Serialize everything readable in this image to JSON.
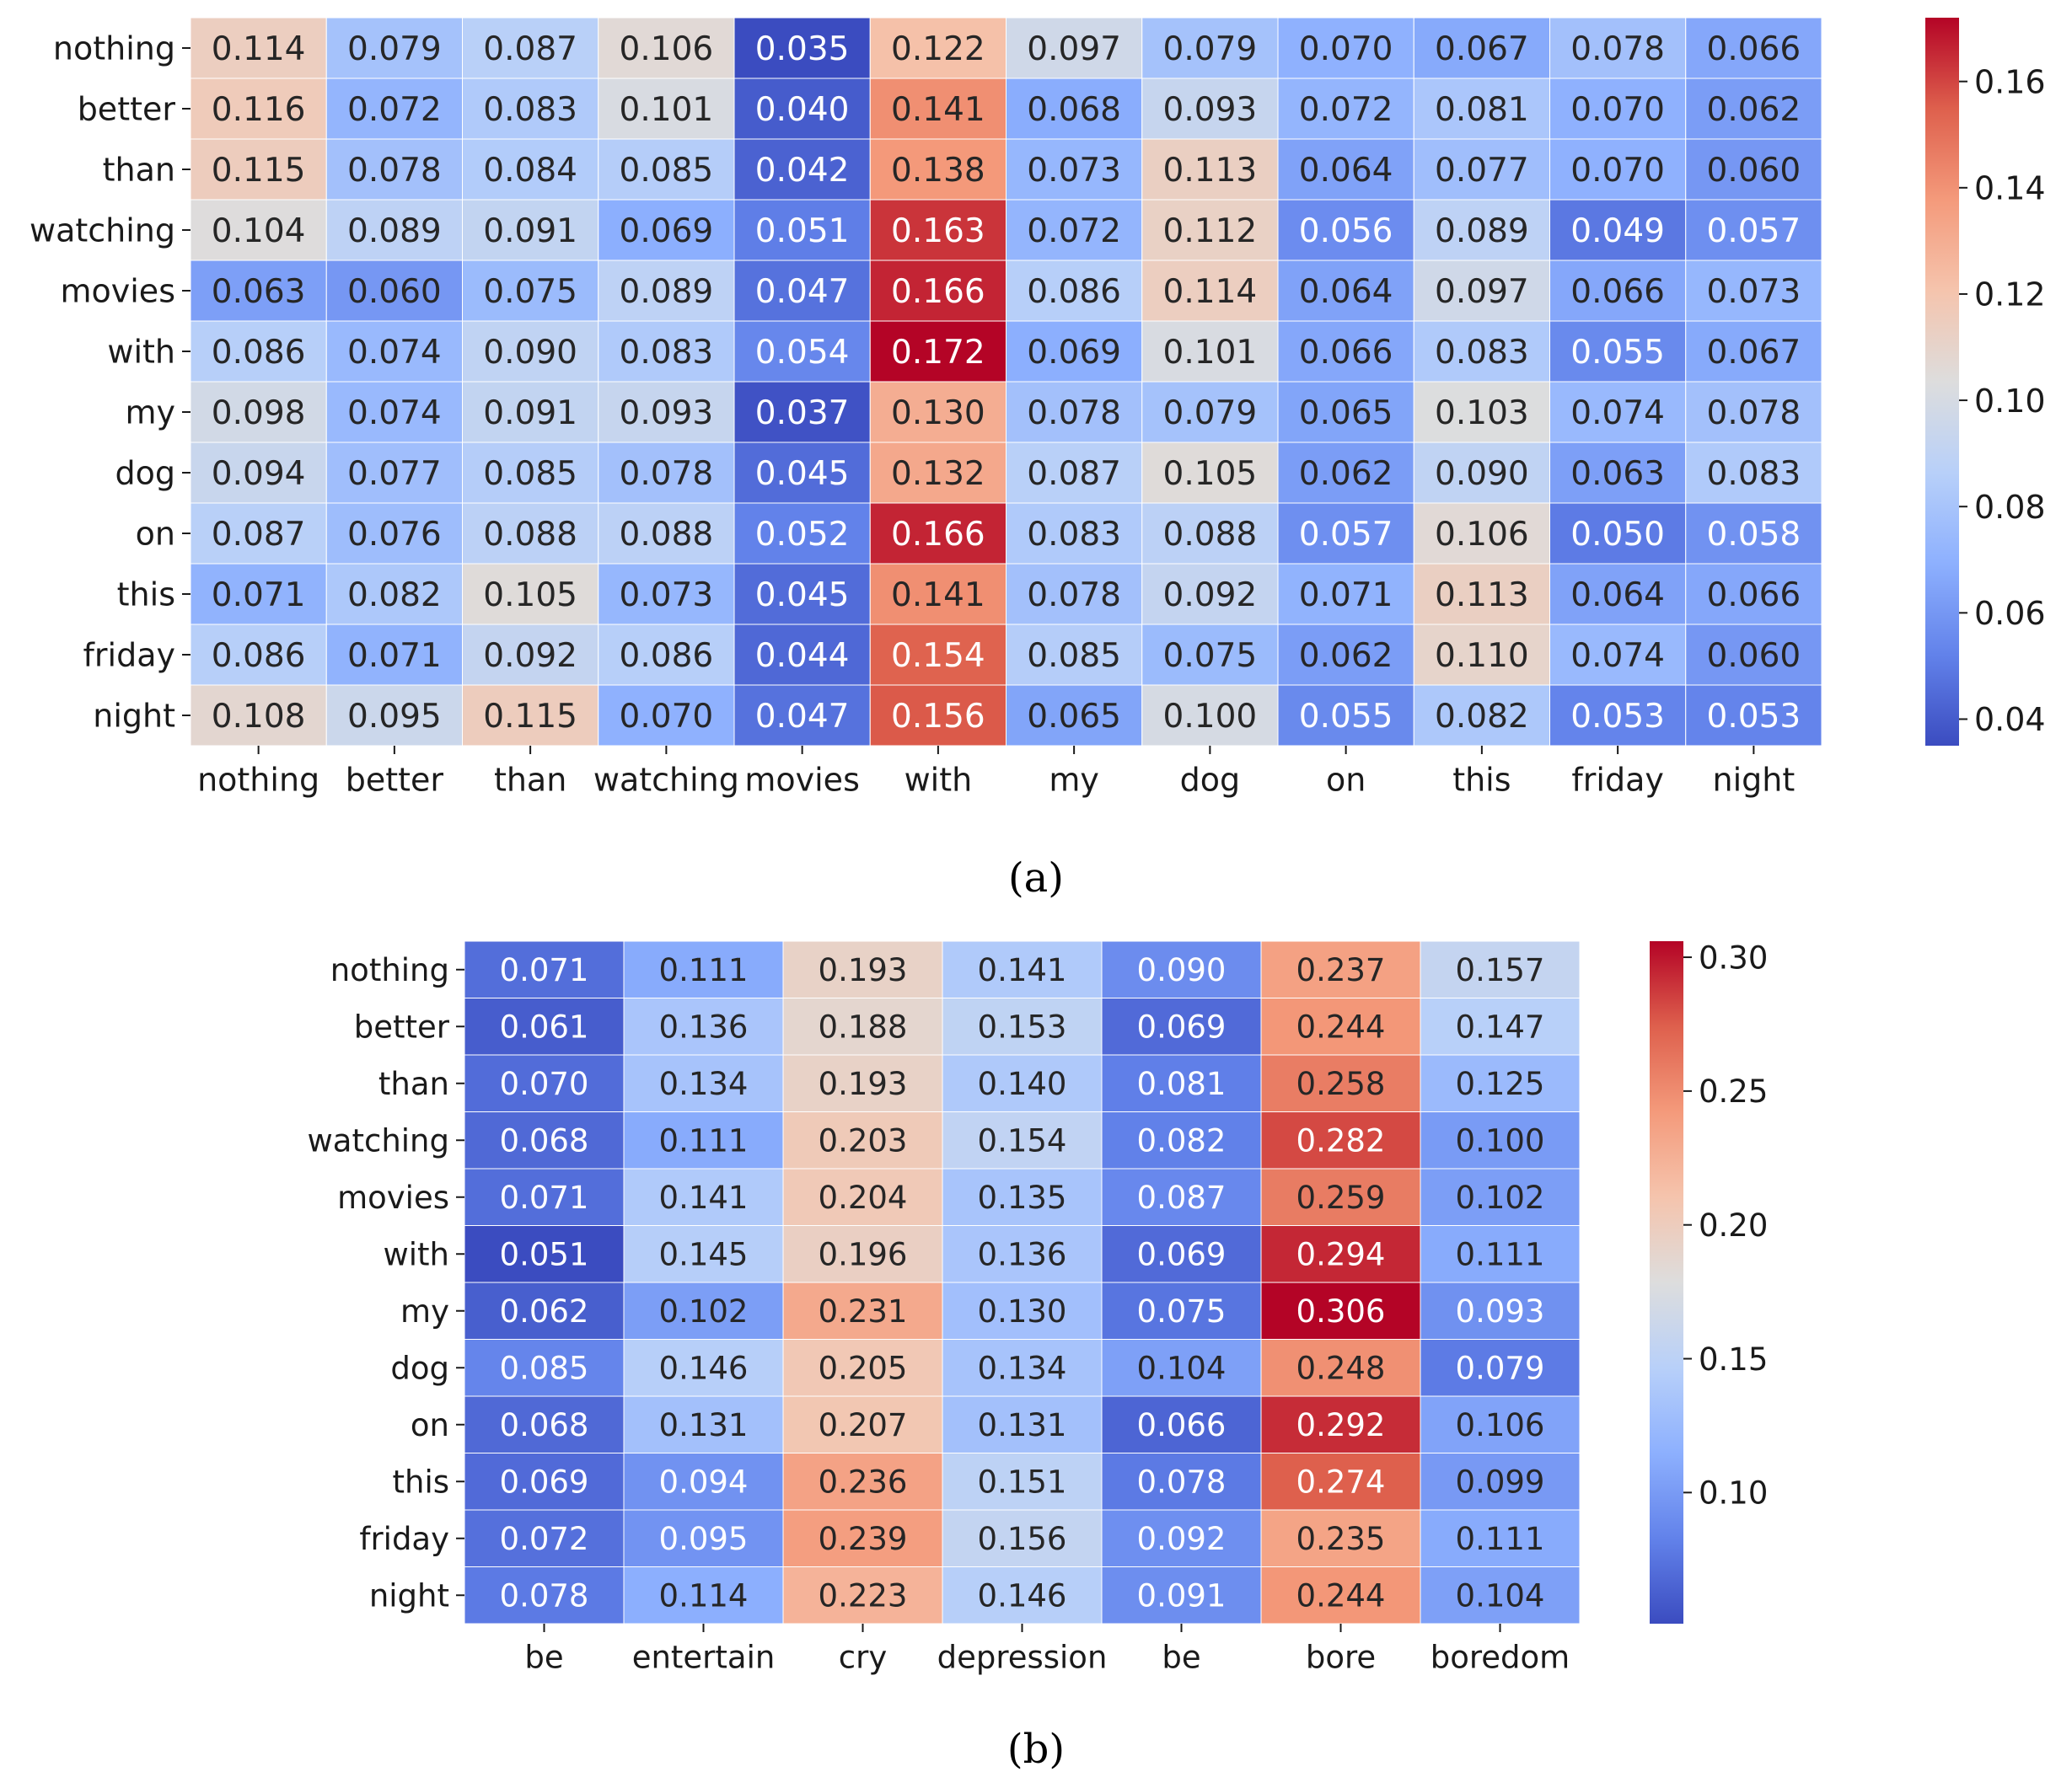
{
  "chart_data": [
    {
      "type": "heatmap",
      "caption": "(a)",
      "rows": [
        "nothing",
        "better",
        "than",
        "watching",
        "movies",
        "with",
        "my",
        "dog",
        "on",
        "this",
        "friday",
        "night"
      ],
      "cols": [
        "nothing",
        "better",
        "than",
        "watching",
        "movies",
        "with",
        "my",
        "dog",
        "on",
        "this",
        "friday",
        "night"
      ],
      "values": [
        [
          0.114,
          0.079,
          0.087,
          0.106,
          0.035,
          0.122,
          0.097,
          0.079,
          0.07,
          0.067,
          0.078,
          0.066
        ],
        [
          0.116,
          0.072,
          0.083,
          0.101,
          0.04,
          0.141,
          0.068,
          0.093,
          0.072,
          0.081,
          0.07,
          0.062
        ],
        [
          0.115,
          0.078,
          0.084,
          0.085,
          0.042,
          0.138,
          0.073,
          0.113,
          0.064,
          0.077,
          0.07,
          0.06
        ],
        [
          0.104,
          0.089,
          0.091,
          0.069,
          0.051,
          0.163,
          0.072,
          0.112,
          0.056,
          0.089,
          0.049,
          0.057
        ],
        [
          0.063,
          0.06,
          0.075,
          0.089,
          0.047,
          0.166,
          0.086,
          0.114,
          0.064,
          0.097,
          0.066,
          0.073
        ],
        [
          0.086,
          0.074,
          0.09,
          0.083,
          0.054,
          0.172,
          0.069,
          0.101,
          0.066,
          0.083,
          0.055,
          0.067
        ],
        [
          0.098,
          0.074,
          0.091,
          0.093,
          0.037,
          0.13,
          0.078,
          0.079,
          0.065,
          0.103,
          0.074,
          0.078
        ],
        [
          0.094,
          0.077,
          0.085,
          0.078,
          0.045,
          0.132,
          0.087,
          0.105,
          0.062,
          0.09,
          0.063,
          0.083
        ],
        [
          0.087,
          0.076,
          0.088,
          0.088,
          0.052,
          0.166,
          0.083,
          0.088,
          0.057,
          0.106,
          0.05,
          0.058
        ],
        [
          0.071,
          0.082,
          0.105,
          0.073,
          0.045,
          0.141,
          0.078,
          0.092,
          0.071,
          0.113,
          0.064,
          0.066
        ],
        [
          0.086,
          0.071,
          0.092,
          0.086,
          0.044,
          0.154,
          0.085,
          0.075,
          0.062,
          0.11,
          0.074,
          0.06
        ],
        [
          0.108,
          0.095,
          0.115,
          0.07,
          0.047,
          0.156,
          0.065,
          0.1,
          0.055,
          0.082,
          0.053,
          0.053
        ]
      ],
      "colormap": "coolwarm",
      "vmin": 0.035,
      "vmax": 0.172,
      "colorbar_ticks": [
        0.04,
        0.06,
        0.08,
        0.1,
        0.12,
        0.14,
        0.16
      ],
      "colorbar_tick_labels": [
        "0.04",
        "0.06",
        "0.08",
        "0.10",
        "0.12",
        "0.14",
        "0.16"
      ]
    },
    {
      "type": "heatmap",
      "caption": "(b)",
      "rows": [
        "nothing",
        "better",
        "than",
        "watching",
        "movies",
        "with",
        "my",
        "dog",
        "on",
        "this",
        "friday",
        "night"
      ],
      "cols": [
        "be",
        "entertain",
        "cry",
        "depression",
        "be",
        "bore",
        "boredom"
      ],
      "values": [
        [
          0.071,
          0.111,
          0.193,
          0.141,
          0.09,
          0.237,
          0.157
        ],
        [
          0.061,
          0.136,
          0.188,
          0.153,
          0.069,
          0.244,
          0.147
        ],
        [
          0.07,
          0.134,
          0.193,
          0.14,
          0.081,
          0.258,
          0.125
        ],
        [
          0.068,
          0.111,
          0.203,
          0.154,
          0.082,
          0.282,
          0.1
        ],
        [
          0.071,
          0.141,
          0.204,
          0.135,
          0.087,
          0.259,
          0.102
        ],
        [
          0.051,
          0.145,
          0.196,
          0.136,
          0.069,
          0.294,
          0.111
        ],
        [
          0.062,
          0.102,
          0.231,
          0.13,
          0.075,
          0.306,
          0.093
        ],
        [
          0.085,
          0.146,
          0.205,
          0.134,
          0.104,
          0.248,
          0.079
        ],
        [
          0.068,
          0.131,
          0.207,
          0.131,
          0.066,
          0.292,
          0.106
        ],
        [
          0.069,
          0.094,
          0.236,
          0.151,
          0.078,
          0.274,
          0.099
        ],
        [
          0.072,
          0.095,
          0.239,
          0.156,
          0.092,
          0.235,
          0.111
        ],
        [
          0.078,
          0.114,
          0.223,
          0.146,
          0.091,
          0.244,
          0.104
        ]
      ],
      "colormap": "coolwarm",
      "vmin": 0.051,
      "vmax": 0.306,
      "colorbar_ticks": [
        0.1,
        0.15,
        0.2,
        0.25,
        0.3
      ],
      "colorbar_tick_labels": [
        "0.10",
        "0.15",
        "0.20",
        "0.25",
        "0.30"
      ]
    }
  ]
}
